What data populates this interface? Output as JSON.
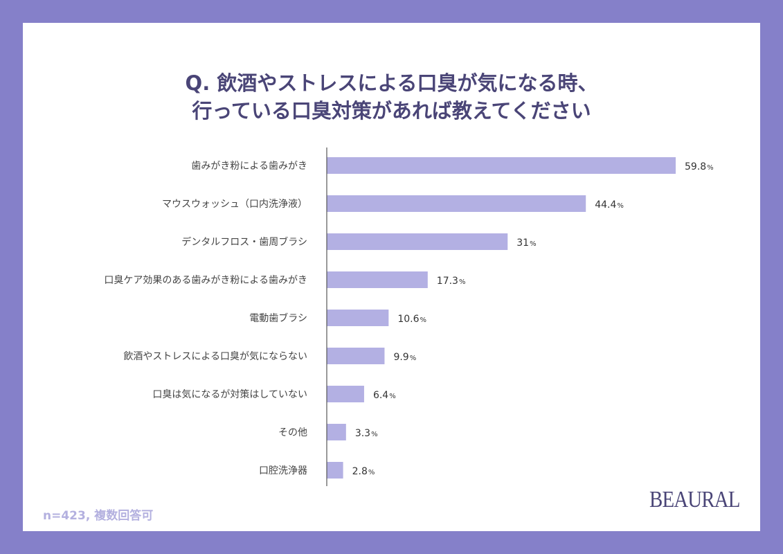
{
  "chart_data": {
    "type": "bar",
    "orientation": "horizontal",
    "title": [
      "Q. 飲酒やストレスによる口臭が気になる時、",
      "行っている口臭対策があれば教えてください"
    ],
    "categories": [
      "歯みがき粉による歯みがき",
      "マウスウォッシュ（口内洗浄液）",
      "デンタルフロス・歯周ブラシ",
      "口臭ケア効果のある歯みがき粉による歯みがき",
      "電動歯ブラシ",
      "飲酒やストレスによる口臭が気にならない",
      "口臭は気になるが対策はしていない",
      "その他",
      "口腔洗浄器"
    ],
    "values": [
      59.8,
      44.4,
      31,
      17.3,
      10.6,
      9.9,
      6.4,
      3.3,
      2.8
    ],
    "data_labels": [
      "59.8",
      "44.4",
      "31",
      "17.3",
      "10.6",
      "9.9",
      "6.4",
      "3.3",
      "2.8"
    ],
    "unit": "%",
    "bar_color": "#b3b0e3",
    "grid": false
  },
  "footnote": "n=423, 複数回答可",
  "logo": "BEAURAL",
  "colors": {
    "frame": "#8580c9",
    "title": "#4a4577",
    "bar": "#b3b0e3"
  }
}
